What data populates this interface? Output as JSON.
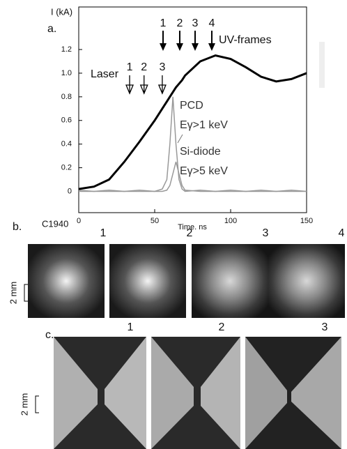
{
  "chart_data": {
    "type": "line",
    "panel_label": "a.",
    "ylabel": "I (kA)",
    "xlabel": "Time. ns",
    "shot_label": "C1940",
    "x": [
      0,
      10,
      20,
      30,
      40,
      50,
      55,
      58,
      60,
      62,
      64,
      66,
      68,
      70,
      80,
      90,
      100,
      110,
      120,
      130,
      140,
      150
    ],
    "series": [
      {
        "color": "#000000",
        "values": [
          0.02,
          0.04,
          0.1,
          0.25,
          0.42,
          0.6,
          0.7,
          0.76,
          0.8,
          0.84,
          0.88,
          0.91,
          0.94,
          0.98,
          1.1,
          1.15,
          1.12,
          1.05,
          0.97,
          0.93,
          0.95,
          1.0
        ]
      },
      {
        "name": "PCD",
        "note": "Eγ>1 keV",
        "color": "#999999",
        "values": [
          0.01,
          0.0,
          0.01,
          0.0,
          0.01,
          0.0,
          0.02,
          0.1,
          0.4,
          0.8,
          0.4,
          0.1,
          0.02,
          0.0,
          0.01,
          0.0,
          0.01,
          0.0,
          0.01,
          0.0,
          0.01,
          0.0
        ]
      },
      {
        "name": "Si-diode",
        "note": "Eγ>5 keV",
        "color": "#999999",
        "values": [
          0.0,
          0.0,
          0.0,
          0.0,
          0.0,
          0.0,
          0.0,
          0.01,
          0.05,
          0.15,
          0.25,
          0.15,
          0.05,
          0.01,
          0.0,
          0.0,
          0.0,
          0.0,
          0.0,
          0.0,
          0.0,
          0.0
        ]
      }
    ],
    "xlim": [
      0,
      150
    ],
    "ylim": [
      -0.18,
      1.56
    ],
    "xticks": [
      0,
      50,
      100,
      150
    ],
    "yticks": [
      0,
      0.2,
      0.4,
      0.6,
      0.8,
      {
        "value": 1,
        "label": "1.0"
      },
      1.2
    ],
    "laser": {
      "label": "Laser",
      "marks": [
        {
          "label": "1",
          "x": 33.5
        },
        {
          "label": "2",
          "x": 43
        },
        {
          "label": "3",
          "x": 55
        }
      ]
    },
    "uv_frames": {
      "label": "UV-frames",
      "marks": [
        {
          "label": "1",
          "x": 55.5
        },
        {
          "label": "2",
          "x": 66.5
        },
        {
          "label": "3",
          "x": 76.6
        },
        {
          "label": "4",
          "x": 87.6
        }
      ]
    }
  },
  "panel_b": {
    "label": "b.",
    "frames": [
      "1",
      "2",
      "3",
      "4"
    ],
    "scale": "2 mm"
  },
  "panel_c": {
    "label": "c.",
    "frames": [
      "1",
      "2",
      "3"
    ],
    "scale": "2 mm"
  }
}
